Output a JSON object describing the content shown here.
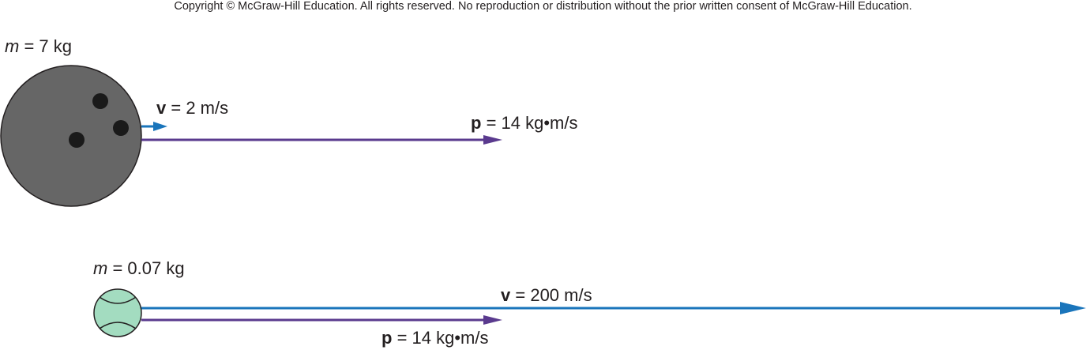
{
  "copyright": "Copyright © McGraw-Hill Education.  All rights reserved. No reproduction or distribution without the prior written consent of McGraw-Hill Education.",
  "colors": {
    "bowling_ball": "#666666",
    "finger_holes": "#1a1a1a",
    "tennis_ball": "#a3dcc0",
    "velocity_arrow": "#1a75bb",
    "momentum_arrow": "#5a3a8e",
    "outline": "#231f20"
  },
  "bowling": {
    "mass_symbol": "m",
    "mass_value": "= 7 kg",
    "velocity_symbol": "v",
    "velocity_value": "= 2 m/s",
    "momentum_symbol": "p",
    "momentum_value": "= 14 kg•m/s"
  },
  "tennis": {
    "mass_symbol": "m",
    "mass_value": "= 0.07 kg",
    "velocity_symbol": "v",
    "velocity_value": "= 200 m/s",
    "momentum_symbol": "p",
    "momentum_value": "= 14 kg•m/s"
  }
}
